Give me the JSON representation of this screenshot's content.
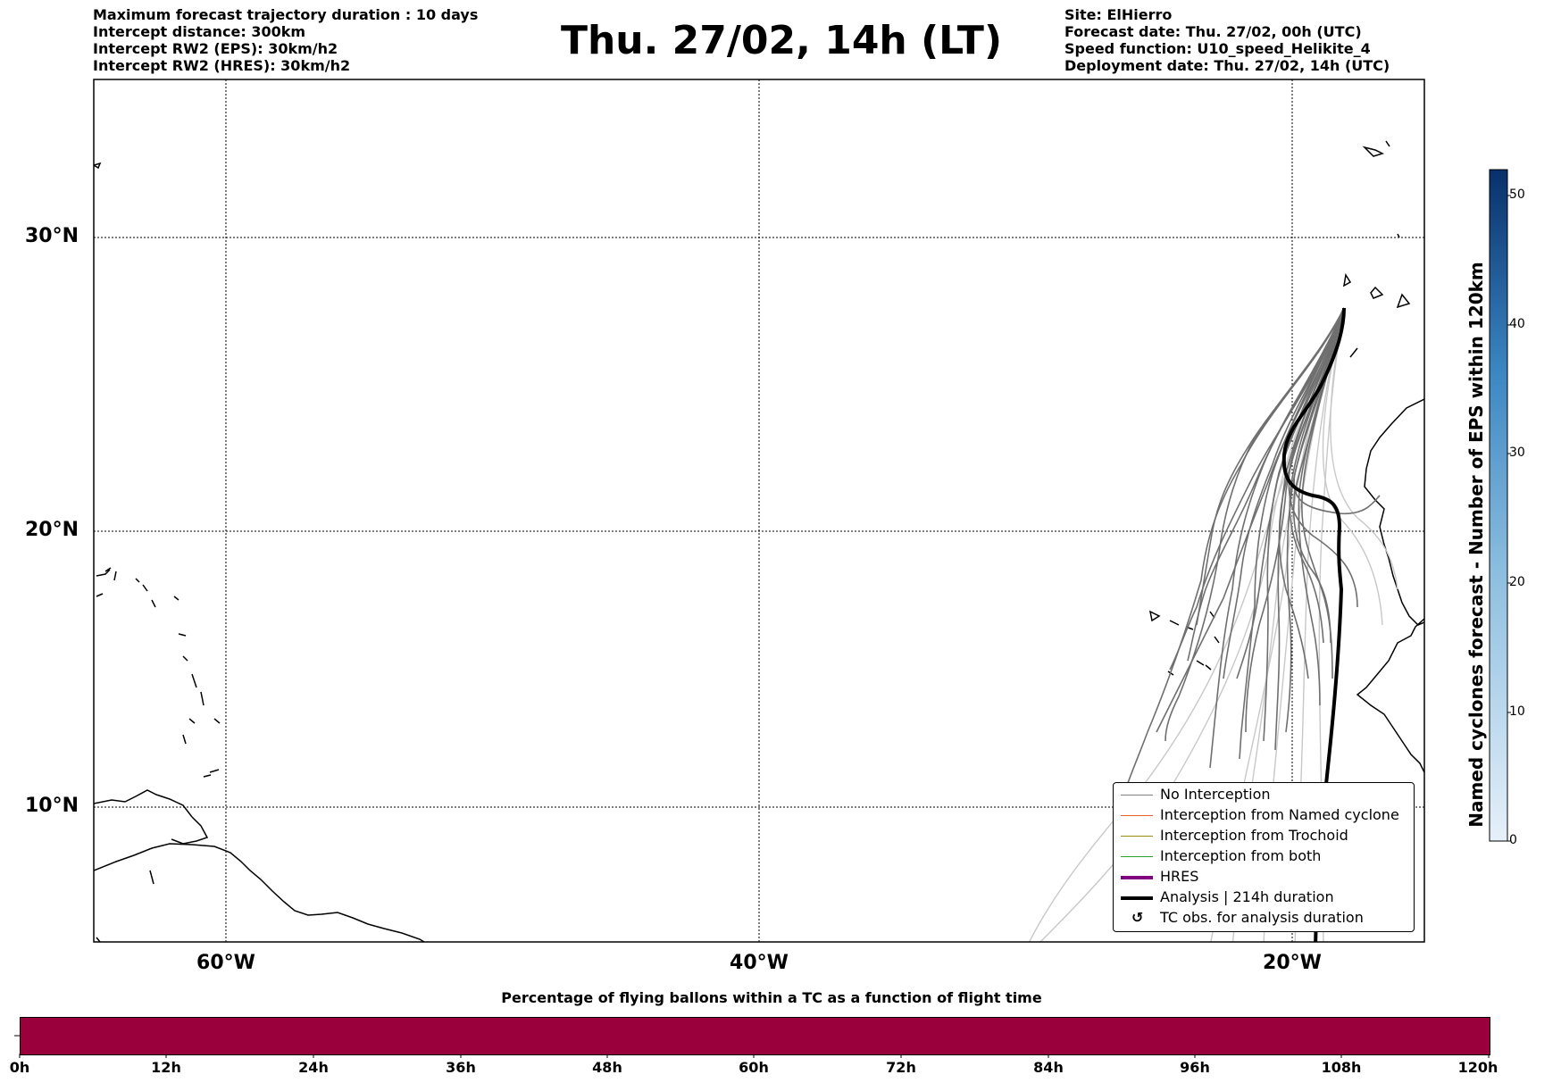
{
  "header_left": [
    "Maximum forecast trajectory duration : 10 days",
    "Intercept distance: 300km",
    "Intercept RW2 (EPS):  30km/h2",
    "Intercept RW2 (HRES): 30km/h2"
  ],
  "title": "Thu. 27/02, 14h (LT)",
  "header_right": [
    "Site: ElHierro",
    "Forecast date: Thu. 27/02, 00h (UTC)",
    "Speed function: U10_speed_Helikite_4",
    "Deployment date: Thu. 27/02, 14h (UTC)"
  ],
  "map": {
    "lat_labels": [
      "30°N",
      "20°N",
      "10°N"
    ],
    "lon_labels": [
      "60°W",
      "40°W",
      "20°W"
    ]
  },
  "legend": {
    "items": [
      {
        "label": "No Interception",
        "color": "#808080"
      },
      {
        "label": "Interception from Named cyclone",
        "color": "#e8602c"
      },
      {
        "label": "Interception from Trochoid",
        "color": "#9a8c10"
      },
      {
        "label": "Interception from both",
        "color": "#2ca02c"
      },
      {
        "label": "HRES",
        "color": "#800080"
      },
      {
        "label": "Analysis | 214h duration",
        "color": "#000000"
      },
      {
        "label": "TC obs. for analysis duration",
        "icon": "cyclone-icon",
        "symbol": "↺"
      }
    ]
  },
  "colorbar": {
    "label": "Named cyclones forecast - Number of EPS within 120km",
    "ticks": [
      "0",
      "10",
      "20",
      "30",
      "40",
      "50"
    ],
    "color_low": "#e6f0fa",
    "color_high": "#08306b"
  },
  "flight_time_bar": {
    "title": "Percentage of flying ballons within a TC as a function of flight time",
    "ticks": [
      "0h",
      "12h",
      "24h",
      "36h",
      "48h",
      "60h",
      "72h",
      "84h",
      "96h",
      "108h",
      "120h"
    ],
    "color": "#9a003c"
  }
}
